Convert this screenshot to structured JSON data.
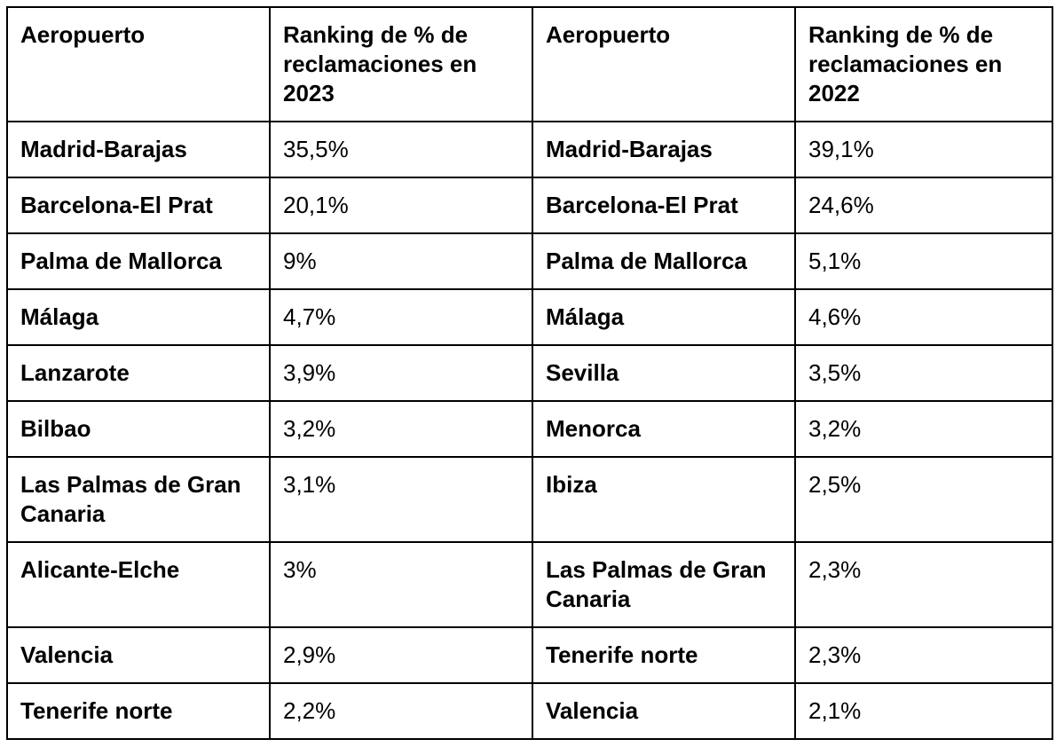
{
  "table": {
    "headers": [
      "Aeropuerto",
      "Ranking de % de reclamaciones en 2023",
      "Aeropuerto",
      "Ranking de % de reclamaciones en 2022"
    ],
    "rows": [
      [
        "Madrid-Barajas",
        "35,5%",
        "Madrid-Barajas",
        "39,1%"
      ],
      [
        "Barcelona-El Prat",
        "20,1%",
        "Barcelona-El Prat",
        "24,6%"
      ],
      [
        "Palma de Mallorca",
        "9%",
        "Palma de Mallorca",
        "5,1%"
      ],
      [
        "Málaga",
        "4,7%",
        "Málaga",
        "4,6%"
      ],
      [
        "Lanzarote",
        "3,9%",
        "Sevilla",
        "3,5%"
      ],
      [
        "Bilbao",
        "3,2%",
        "Menorca",
        "3,2%"
      ],
      [
        "Las Palmas de Gran Canaria",
        "3,1%",
        "Ibiza",
        "2,5%"
      ],
      [
        "Alicante-Elche",
        "3%",
        "Las Palmas de Gran Canaria",
        "2,3%"
      ],
      [
        "Valencia",
        "2,9%",
        "Tenerife norte",
        "2,3%"
      ],
      [
        "Tenerife norte",
        "2,2%",
        "Valencia",
        "2,1%"
      ]
    ]
  }
}
